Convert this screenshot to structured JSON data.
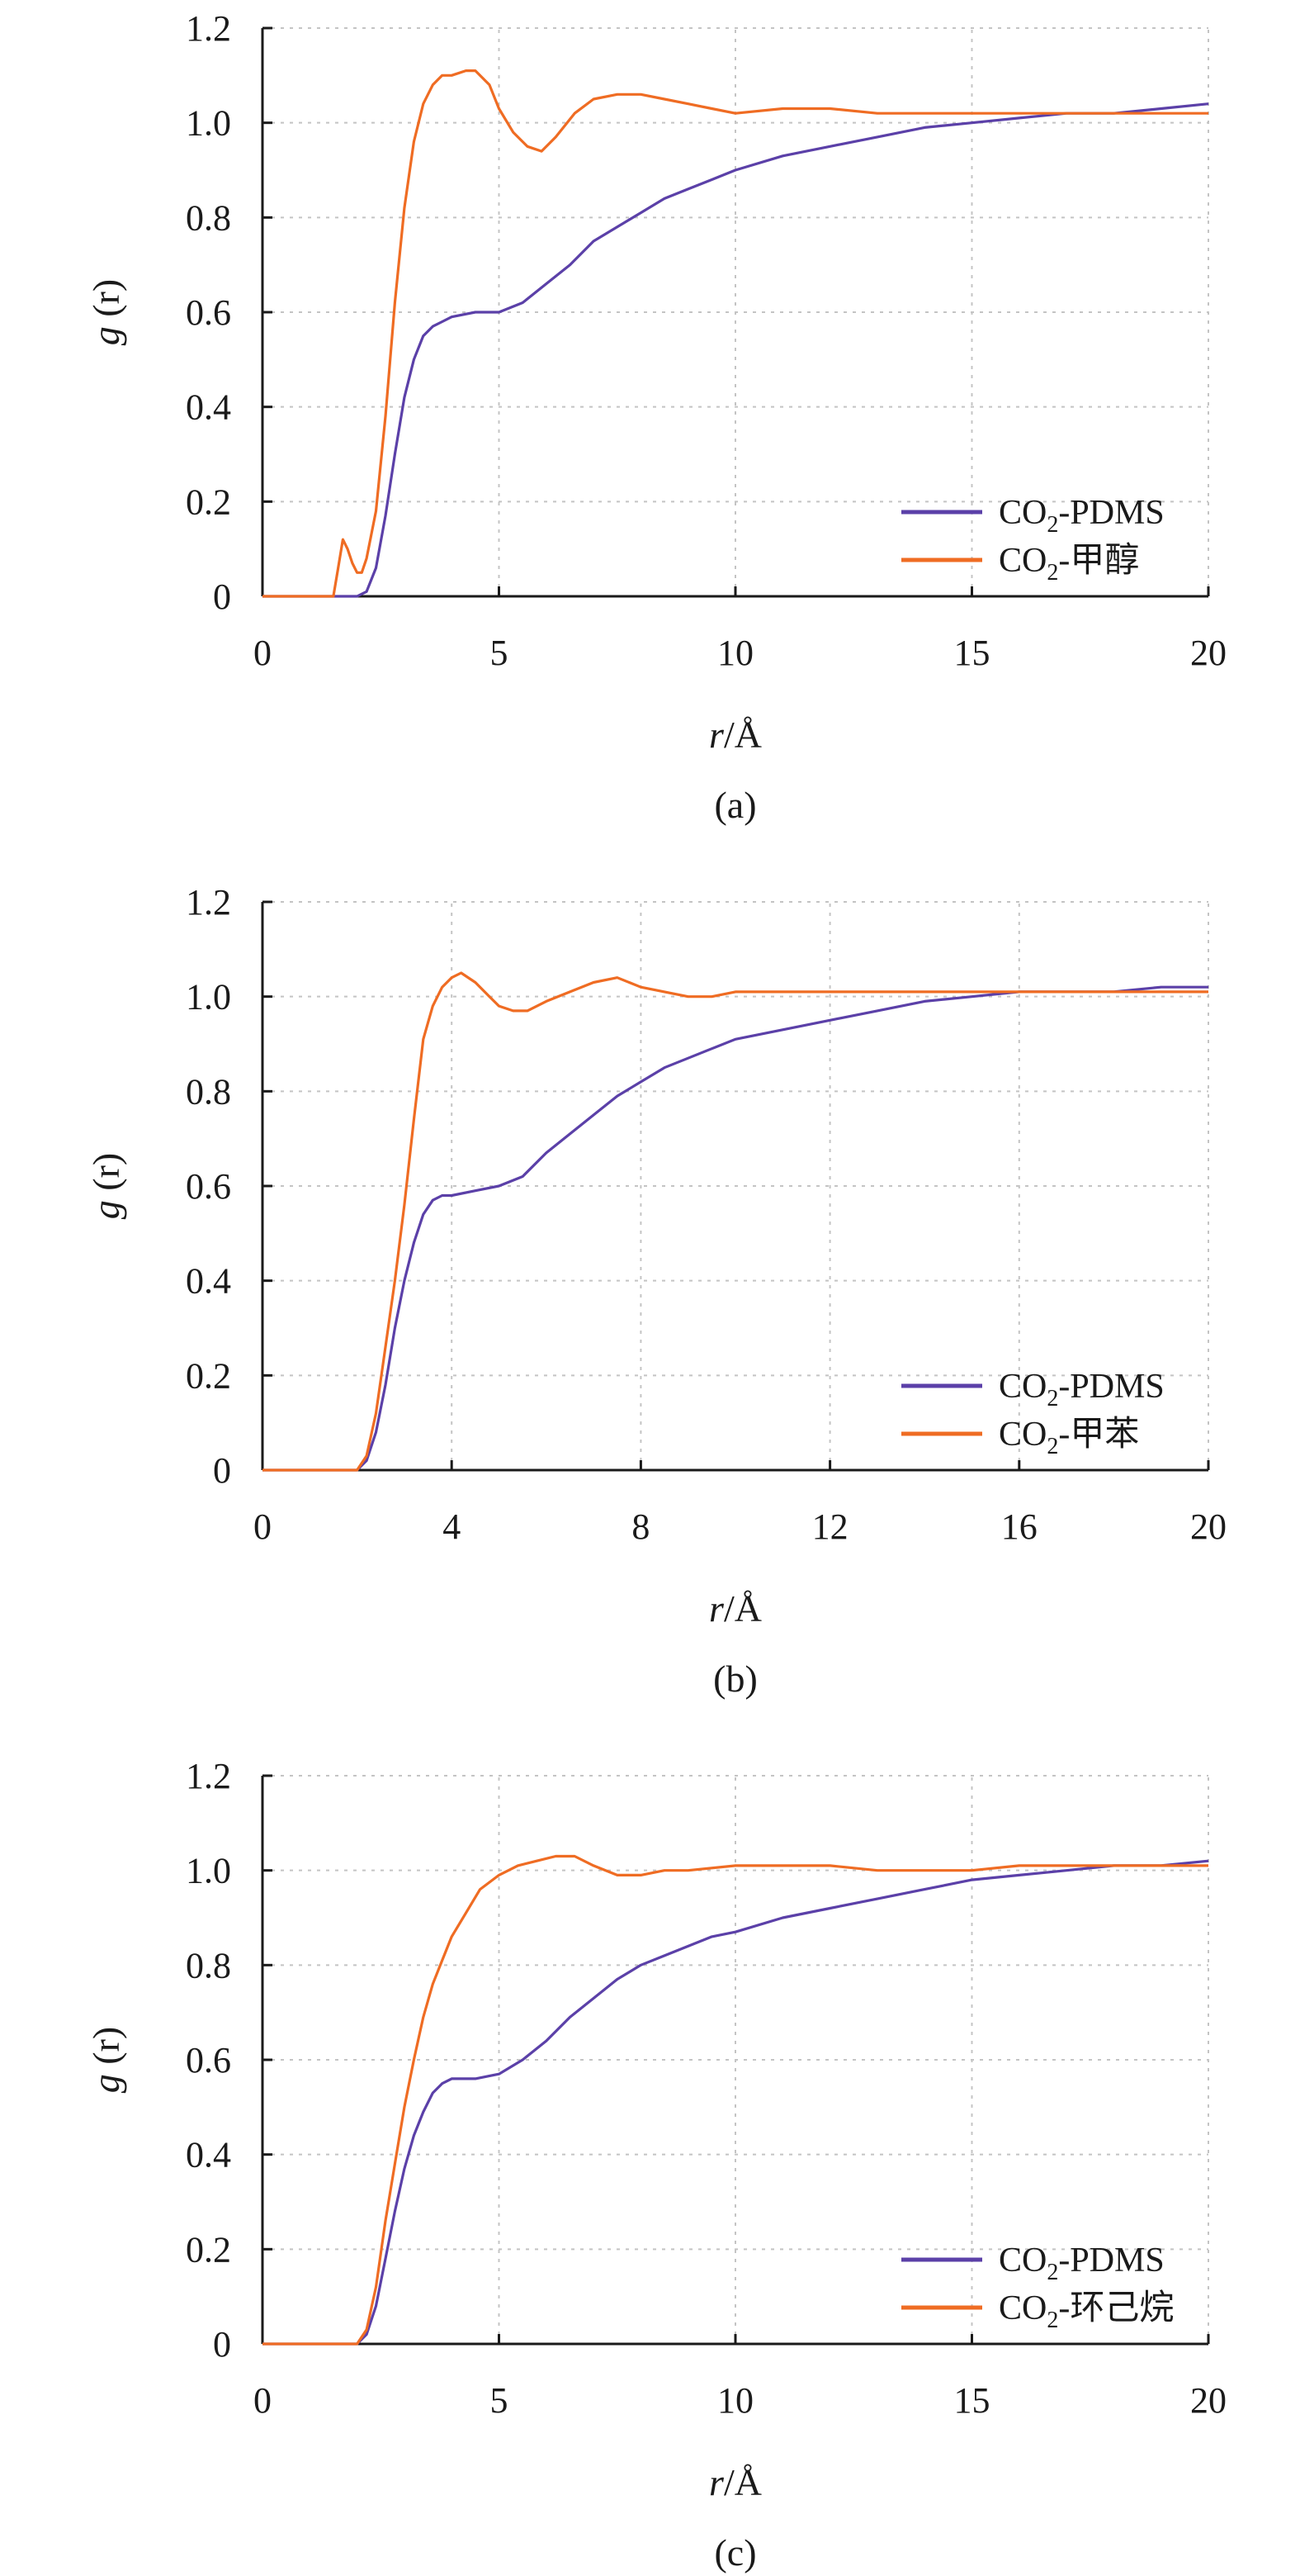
{
  "colors": {
    "pdms": "#5b40a8",
    "solvent": "#ef6c23"
  },
  "chart_data": [
    {
      "type": "line",
      "panel_label": "(a)",
      "title": "",
      "xlabel_italic": "r",
      "xlabel_rest": "/Å",
      "ylabel_italic": "g",
      "ylabel_rest": " (r)",
      "xlim": [
        0,
        20
      ],
      "ylim": [
        0,
        1.2
      ],
      "xticks": [
        0,
        5,
        10,
        15,
        20
      ],
      "xtick_labels": [
        "0",
        "5",
        "10",
        "15",
        "20"
      ],
      "yticks": [
        0,
        0.2,
        0.4,
        0.6,
        0.8,
        1.0,
        1.2
      ],
      "ytick_labels": [
        "0",
        "0.2",
        "0.4",
        "0.6",
        "0.8",
        "1.0",
        "1.2"
      ],
      "grid": true,
      "legend_position": "bottom-right",
      "series": [
        {
          "name": "CO₂-PDMS",
          "label_parts": [
            "CO",
            "2",
            "-PDMS"
          ],
          "color": "#5b40a8",
          "points": [
            [
              0,
              0
            ],
            [
              2.0,
              0
            ],
            [
              2.2,
              0.01
            ],
            [
              2.4,
              0.06
            ],
            [
              2.6,
              0.17
            ],
            [
              2.8,
              0.3
            ],
            [
              3.0,
              0.42
            ],
            [
              3.2,
              0.5
            ],
            [
              3.4,
              0.55
            ],
            [
              3.6,
              0.57
            ],
            [
              3.8,
              0.58
            ],
            [
              4.0,
              0.59
            ],
            [
              4.5,
              0.6
            ],
            [
              5.0,
              0.6
            ],
            [
              5.5,
              0.62
            ],
            [
              6.0,
              0.66
            ],
            [
              6.5,
              0.7
            ],
            [
              7.0,
              0.75
            ],
            [
              7.5,
              0.78
            ],
            [
              8.0,
              0.81
            ],
            [
              8.5,
              0.84
            ],
            [
              9.0,
              0.86
            ],
            [
              9.5,
              0.88
            ],
            [
              10.0,
              0.9
            ],
            [
              11.0,
              0.93
            ],
            [
              12.0,
              0.95
            ],
            [
              13.0,
              0.97
            ],
            [
              14.0,
              0.99
            ],
            [
              15.0,
              1.0
            ],
            [
              16.0,
              1.01
            ],
            [
              17.0,
              1.02
            ],
            [
              18.0,
              1.02
            ],
            [
              19.0,
              1.03
            ],
            [
              20.0,
              1.04
            ]
          ]
        },
        {
          "name": "CO₂-甲醇",
          "label_parts": [
            "CO",
            "2",
            "-甲醇"
          ],
          "color": "#ef6c23",
          "points": [
            [
              0,
              0
            ],
            [
              1.5,
              0
            ],
            [
              1.6,
              0.06
            ],
            [
              1.7,
              0.12
            ],
            [
              1.8,
              0.1
            ],
            [
              1.9,
              0.07
            ],
            [
              2.0,
              0.05
            ],
            [
              2.1,
              0.05
            ],
            [
              2.2,
              0.08
            ],
            [
              2.4,
              0.18
            ],
            [
              2.6,
              0.38
            ],
            [
              2.8,
              0.62
            ],
            [
              3.0,
              0.82
            ],
            [
              3.2,
              0.96
            ],
            [
              3.4,
              1.04
            ],
            [
              3.6,
              1.08
            ],
            [
              3.8,
              1.1
            ],
            [
              4.0,
              1.1
            ],
            [
              4.3,
              1.11
            ],
            [
              4.5,
              1.11
            ],
            [
              4.8,
              1.08
            ],
            [
              5.0,
              1.03
            ],
            [
              5.3,
              0.98
            ],
            [
              5.6,
              0.95
            ],
            [
              5.9,
              0.94
            ],
            [
              6.2,
              0.97
            ],
            [
              6.6,
              1.02
            ],
            [
              7.0,
              1.05
            ],
            [
              7.5,
              1.06
            ],
            [
              8.0,
              1.06
            ],
            [
              8.5,
              1.05
            ],
            [
              9.0,
              1.04
            ],
            [
              9.5,
              1.03
            ],
            [
              10.0,
              1.02
            ],
            [
              11.0,
              1.03
            ],
            [
              12.0,
              1.03
            ],
            [
              13.0,
              1.02
            ],
            [
              14.0,
              1.02
            ],
            [
              15.0,
              1.02
            ],
            [
              16.0,
              1.02
            ],
            [
              17.0,
              1.02
            ],
            [
              18.0,
              1.02
            ],
            [
              19.0,
              1.02
            ],
            [
              20.0,
              1.02
            ]
          ]
        }
      ]
    },
    {
      "type": "line",
      "panel_label": "(b)",
      "title": "",
      "xlabel_italic": "r",
      "xlabel_rest": "/Å",
      "ylabel_italic": "g",
      "ylabel_rest": " (r)",
      "xlim": [
        0,
        20
      ],
      "ylim": [
        0,
        1.2
      ],
      "xticks": [
        0,
        4,
        8,
        12,
        16,
        20
      ],
      "xtick_labels": [
        "0",
        "4",
        "8",
        "12",
        "16",
        "20"
      ],
      "yticks": [
        0,
        0.2,
        0.4,
        0.6,
        0.8,
        1.0,
        1.2
      ],
      "ytick_labels": [
        "0",
        "0.2",
        "0.4",
        "0.6",
        "0.8",
        "1.0",
        "1.2"
      ],
      "grid": true,
      "legend_position": "bottom-right",
      "series": [
        {
          "name": "CO₂-PDMS",
          "label_parts": [
            "CO",
            "2",
            "-PDMS"
          ],
          "color": "#5b40a8",
          "points": [
            [
              0,
              0
            ],
            [
              2.0,
              0
            ],
            [
              2.2,
              0.02
            ],
            [
              2.4,
              0.08
            ],
            [
              2.6,
              0.18
            ],
            [
              2.8,
              0.3
            ],
            [
              3.0,
              0.4
            ],
            [
              3.2,
              0.48
            ],
            [
              3.4,
              0.54
            ],
            [
              3.6,
              0.57
            ],
            [
              3.8,
              0.58
            ],
            [
              4.0,
              0.58
            ],
            [
              4.5,
              0.59
            ],
            [
              5.0,
              0.6
            ],
            [
              5.5,
              0.62
            ],
            [
              6.0,
              0.67
            ],
            [
              6.5,
              0.71
            ],
            [
              7.0,
              0.75
            ],
            [
              7.5,
              0.79
            ],
            [
              8.0,
              0.82
            ],
            [
              8.5,
              0.85
            ],
            [
              9.0,
              0.87
            ],
            [
              9.5,
              0.89
            ],
            [
              10.0,
              0.91
            ],
            [
              11.0,
              0.93
            ],
            [
              12.0,
              0.95
            ],
            [
              13.0,
              0.97
            ],
            [
              14.0,
              0.99
            ],
            [
              15.0,
              1.0
            ],
            [
              16.0,
              1.01
            ],
            [
              17.0,
              1.01
            ],
            [
              18.0,
              1.01
            ],
            [
              19.0,
              1.02
            ],
            [
              20.0,
              1.02
            ]
          ]
        },
        {
          "name": "CO₂-甲苯",
          "label_parts": [
            "CO",
            "2",
            "-甲苯"
          ],
          "color": "#ef6c23",
          "points": [
            [
              0,
              0
            ],
            [
              2.0,
              0
            ],
            [
              2.2,
              0.03
            ],
            [
              2.4,
              0.12
            ],
            [
              2.6,
              0.26
            ],
            [
              2.8,
              0.4
            ],
            [
              3.0,
              0.56
            ],
            [
              3.2,
              0.74
            ],
            [
              3.4,
              0.91
            ],
            [
              3.6,
              0.98
            ],
            [
              3.8,
              1.02
            ],
            [
              4.0,
              1.04
            ],
            [
              4.2,
              1.05
            ],
            [
              4.5,
              1.03
            ],
            [
              4.8,
              1.0
            ],
            [
              5.0,
              0.98
            ],
            [
              5.3,
              0.97
            ],
            [
              5.6,
              0.97
            ],
            [
              6.0,
              0.99
            ],
            [
              6.5,
              1.01
            ],
            [
              7.0,
              1.03
            ],
            [
              7.5,
              1.04
            ],
            [
              8.0,
              1.02
            ],
            [
              8.5,
              1.01
            ],
            [
              9.0,
              1.0
            ],
            [
              9.5,
              1.0
            ],
            [
              10.0,
              1.01
            ],
            [
              11.0,
              1.01
            ],
            [
              12.0,
              1.01
            ],
            [
              13.0,
              1.01
            ],
            [
              14.0,
              1.01
            ],
            [
              15.0,
              1.01
            ],
            [
              16.0,
              1.01
            ],
            [
              17.0,
              1.01
            ],
            [
              18.0,
              1.01
            ],
            [
              19.0,
              1.01
            ],
            [
              20.0,
              1.01
            ]
          ]
        }
      ]
    },
    {
      "type": "line",
      "panel_label": "(c)",
      "title": "",
      "xlabel_italic": "r",
      "xlabel_rest": "/Å",
      "ylabel_italic": "g",
      "ylabel_rest": " (r)",
      "xlim": [
        0,
        20
      ],
      "ylim": [
        0,
        1.2
      ],
      "xticks": [
        0,
        5,
        10,
        15,
        20
      ],
      "xtick_labels": [
        "0",
        "5",
        "10",
        "15",
        "20"
      ],
      "yticks": [
        0,
        0.2,
        0.4,
        0.6,
        0.8,
        1.0,
        1.2
      ],
      "ytick_labels": [
        "0",
        "0.2",
        "0.4",
        "0.6",
        "0.8",
        "1.0",
        "1.2"
      ],
      "grid": true,
      "legend_position": "bottom-right",
      "series": [
        {
          "name": "CO₂-PDMS",
          "label_parts": [
            "CO",
            "2",
            "-PDMS"
          ],
          "color": "#5b40a8",
          "points": [
            [
              0,
              0
            ],
            [
              2.0,
              0
            ],
            [
              2.2,
              0.02
            ],
            [
              2.4,
              0.08
            ],
            [
              2.6,
              0.18
            ],
            [
              2.8,
              0.28
            ],
            [
              3.0,
              0.37
            ],
            [
              3.2,
              0.44
            ],
            [
              3.4,
              0.49
            ],
            [
              3.6,
              0.53
            ],
            [
              3.8,
              0.55
            ],
            [
              4.0,
              0.56
            ],
            [
              4.5,
              0.56
            ],
            [
              5.0,
              0.57
            ],
            [
              5.5,
              0.6
            ],
            [
              6.0,
              0.64
            ],
            [
              6.5,
              0.69
            ],
            [
              7.0,
              0.73
            ],
            [
              7.5,
              0.77
            ],
            [
              8.0,
              0.8
            ],
            [
              8.5,
              0.82
            ],
            [
              9.0,
              0.84
            ],
            [
              9.5,
              0.86
            ],
            [
              10.0,
              0.87
            ],
            [
              11.0,
              0.9
            ],
            [
              12.0,
              0.92
            ],
            [
              13.0,
              0.94
            ],
            [
              14.0,
              0.96
            ],
            [
              15.0,
              0.98
            ],
            [
              16.0,
              0.99
            ],
            [
              17.0,
              1.0
            ],
            [
              18.0,
              1.01
            ],
            [
              19.0,
              1.01
            ],
            [
              20.0,
              1.02
            ]
          ]
        },
        {
          "name": "CO₂-环己烷",
          "label_parts": [
            "CO",
            "2",
            "-环己烷"
          ],
          "color": "#ef6c23",
          "points": [
            [
              0,
              0
            ],
            [
              2.0,
              0
            ],
            [
              2.2,
              0.03
            ],
            [
              2.4,
              0.12
            ],
            [
              2.6,
              0.26
            ],
            [
              2.8,
              0.38
            ],
            [
              3.0,
              0.5
            ],
            [
              3.2,
              0.6
            ],
            [
              3.4,
              0.69
            ],
            [
              3.6,
              0.76
            ],
            [
              3.8,
              0.81
            ],
            [
              4.0,
              0.86
            ],
            [
              4.3,
              0.91
            ],
            [
              4.6,
              0.96
            ],
            [
              5.0,
              0.99
            ],
            [
              5.4,
              1.01
            ],
            [
              5.8,
              1.02
            ],
            [
              6.2,
              1.03
            ],
            [
              6.6,
              1.03
            ],
            [
              7.0,
              1.01
            ],
            [
              7.5,
              0.99
            ],
            [
              8.0,
              0.99
            ],
            [
              8.5,
              1.0
            ],
            [
              9.0,
              1.0
            ],
            [
              10.0,
              1.01
            ],
            [
              11.0,
              1.01
            ],
            [
              12.0,
              1.01
            ],
            [
              13.0,
              1.0
            ],
            [
              14.0,
              1.0
            ],
            [
              15.0,
              1.0
            ],
            [
              16.0,
              1.01
            ],
            [
              17.0,
              1.01
            ],
            [
              18.0,
              1.01
            ],
            [
              19.0,
              1.01
            ],
            [
              20.0,
              1.01
            ]
          ]
        }
      ]
    }
  ]
}
